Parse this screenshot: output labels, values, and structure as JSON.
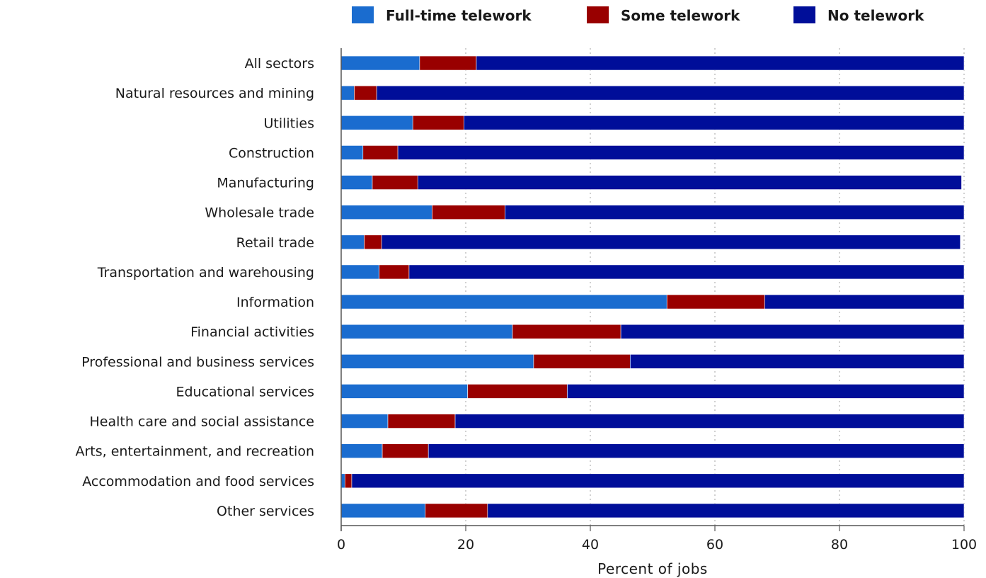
{
  "chart_data": {
    "type": "bar",
    "orientation": "horizontal",
    "stacked": true,
    "categories": [
      "All sectors",
      "Natural resources and mining",
      "Utilities",
      "Construction",
      "Manufacturing",
      "Wholesale trade",
      "Retail trade",
      "Transportation and warehousing",
      "Information",
      "Financial activities",
      "Professional and business services",
      "Educational services",
      "Health care and social assistance",
      "Arts, entertainment, and recreation",
      "Accommodation and food services",
      "Other services"
    ],
    "series": [
      {
        "name": "Full-time telework",
        "color": "#1a6ccf",
        "values": [
          12.6,
          2.1,
          11.5,
          3.5,
          5.0,
          14.6,
          3.7,
          6.1,
          52.3,
          27.5,
          30.9,
          20.3,
          7.5,
          6.6,
          0.6,
          13.5
        ]
      },
      {
        "name": "Some telework",
        "color": "#990000",
        "values": [
          9.1,
          3.6,
          8.2,
          5.6,
          7.3,
          11.7,
          2.8,
          4.8,
          15.7,
          17.4,
          15.5,
          16.0,
          10.8,
          7.4,
          1.1,
          10.0
        ]
      },
      {
        "name": "No telework",
        "color": "#000e99",
        "values": [
          78.3,
          94.3,
          80.3,
          90.9,
          87.3,
          73.7,
          92.9,
          89.1,
          32.0,
          55.1,
          53.6,
          63.7,
          81.7,
          86.0,
          98.3,
          76.5
        ]
      }
    ],
    "xlabel": "Percent of jobs",
    "ylabel": "",
    "xlim": [
      0,
      100
    ],
    "xticks": [
      "0",
      "20",
      "40",
      "60",
      "80",
      "100"
    ],
    "grid": "vertical-dotted",
    "legend_position": "top"
  }
}
